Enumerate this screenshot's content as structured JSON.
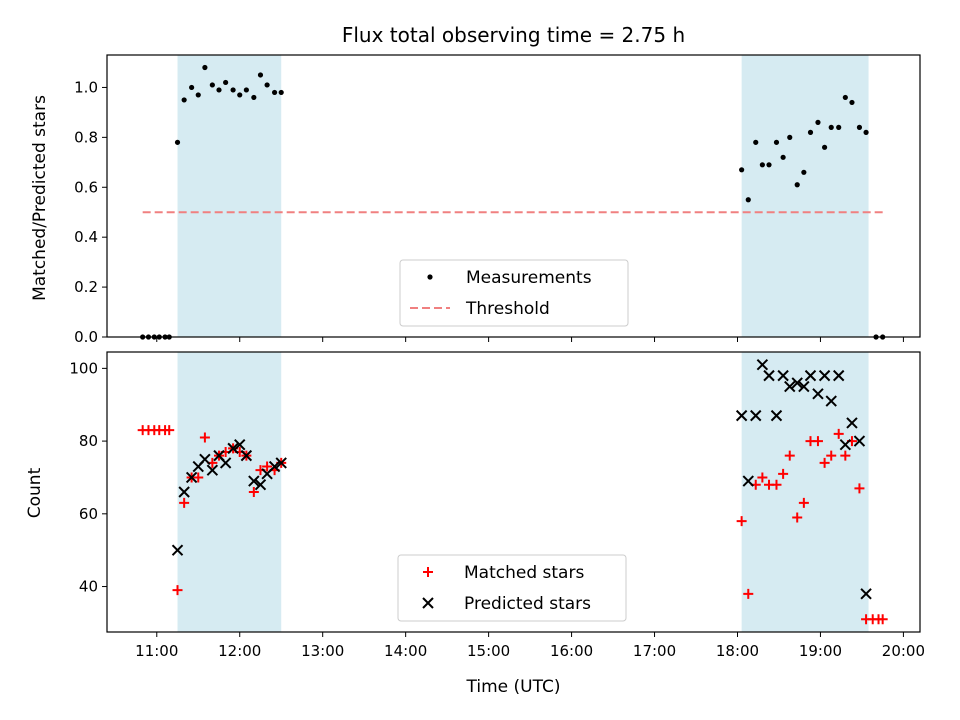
{
  "chart_data": [
    {
      "type": "scatter",
      "title": "Flux total observing time = 2.75 h",
      "xlabel": "",
      "ylabel": "Matched/Predicted stars",
      "x_unit": "hours UTC",
      "xlim": [
        10.4,
        20.2
      ],
      "ylim": [
        0.0,
        1.13
      ],
      "yticks": [
        "0.0",
        "0.2",
        "0.4",
        "0.6",
        "0.8",
        "1.0"
      ],
      "shaded_spans": [
        [
          11.25,
          12.5
        ],
        [
          18.05,
          19.58
        ]
      ],
      "legend_position": "lower center",
      "series": [
        {
          "name": "Measurements",
          "marker": "dot",
          "color": "#000000",
          "x": [
            10.83,
            10.9,
            10.97,
            11.03,
            11.1,
            11.15,
            11.25,
            11.33,
            11.42,
            11.5,
            11.58,
            11.67,
            11.75,
            11.83,
            11.92,
            12.0,
            12.08,
            12.17,
            12.25,
            12.33,
            12.42,
            12.5,
            18.05,
            18.13,
            18.22,
            18.3,
            18.38,
            18.47,
            18.55,
            18.63,
            18.72,
            18.8,
            18.88,
            18.97,
            19.05,
            19.13,
            19.22,
            19.3,
            19.38,
            19.47,
            19.55,
            19.67,
            19.75
          ],
          "y": [
            0.0,
            0.0,
            0.0,
            0.0,
            0.0,
            0.0,
            0.78,
            0.95,
            1.0,
            0.97,
            1.08,
            1.01,
            0.99,
            1.02,
            0.99,
            0.97,
            0.99,
            0.96,
            1.05,
            1.01,
            0.98,
            0.98,
            0.67,
            0.55,
            0.78,
            0.69,
            0.69,
            0.78,
            0.72,
            0.8,
            0.61,
            0.66,
            0.82,
            0.86,
            0.76,
            0.84,
            0.84,
            0.96,
            0.94,
            0.84,
            0.82,
            0.0,
            0.0
          ]
        },
        {
          "name": "Threshold",
          "marker": "dashed-line",
          "color": "#f08080",
          "x": [
            10.83,
            19.75
          ],
          "y": [
            0.5,
            0.5
          ]
        }
      ]
    },
    {
      "type": "scatter",
      "title": "",
      "xlabel": "Time (UTC)",
      "ylabel": "Count",
      "x_unit": "hours UTC",
      "xlim": [
        10.4,
        20.2
      ],
      "ylim": [
        27.5,
        104.5
      ],
      "xticks": [
        "11:00",
        "12:00",
        "13:00",
        "14:00",
        "15:00",
        "16:00",
        "17:00",
        "18:00",
        "19:00",
        "20:00"
      ],
      "yticks": [
        "40",
        "60",
        "80",
        "100"
      ],
      "shaded_spans": [
        [
          11.25,
          12.5
        ],
        [
          18.05,
          19.58
        ]
      ],
      "legend_position": "lower center",
      "series": [
        {
          "name": "Matched stars",
          "marker": "plus",
          "color": "#ff0000",
          "x": [
            10.83,
            10.9,
            10.97,
            11.03,
            11.1,
            11.15,
            11.25,
            11.33,
            11.42,
            11.5,
            11.58,
            11.67,
            11.75,
            11.83,
            11.92,
            12.0,
            12.08,
            12.17,
            12.25,
            12.33,
            12.42,
            12.5,
            18.05,
            18.13,
            18.22,
            18.3,
            18.38,
            18.47,
            18.55,
            18.63,
            18.72,
            18.8,
            18.88,
            18.97,
            19.05,
            19.13,
            19.22,
            19.3,
            19.38,
            19.47,
            19.55,
            19.63,
            19.7,
            19.75
          ],
          "y": [
            83,
            83,
            83,
            83,
            83,
            83,
            39,
            63,
            70,
            70,
            81,
            74,
            76,
            77,
            78,
            77,
            76,
            66,
            72,
            73,
            72,
            74,
            58,
            38,
            68,
            70,
            68,
            68,
            71,
            76,
            59,
            63,
            80,
            80,
            74,
            76,
            82,
            76,
            80,
            67,
            31,
            31,
            31,
            31
          ]
        },
        {
          "name": "Predicted stars",
          "marker": "x",
          "color": "#000000",
          "x": [
            11.25,
            11.33,
            11.42,
            11.5,
            11.58,
            11.67,
            11.75,
            11.83,
            11.92,
            12.0,
            12.08,
            12.17,
            12.25,
            12.33,
            12.42,
            12.5,
            18.05,
            18.13,
            18.22,
            18.3,
            18.38,
            18.47,
            18.55,
            18.63,
            18.72,
            18.8,
            18.88,
            18.97,
            19.05,
            19.13,
            19.22,
            19.3,
            19.38,
            19.47,
            19.55
          ],
          "y": [
            50,
            66,
            70,
            73,
            75,
            72,
            76,
            74,
            78,
            79,
            76,
            69,
            68,
            71,
            73,
            74,
            87,
            69,
            87,
            101,
            98,
            87,
            98,
            95,
            96,
            95,
            98,
            93,
            98,
            91,
            98,
            79,
            85,
            80,
            38
          ]
        }
      ]
    }
  ]
}
